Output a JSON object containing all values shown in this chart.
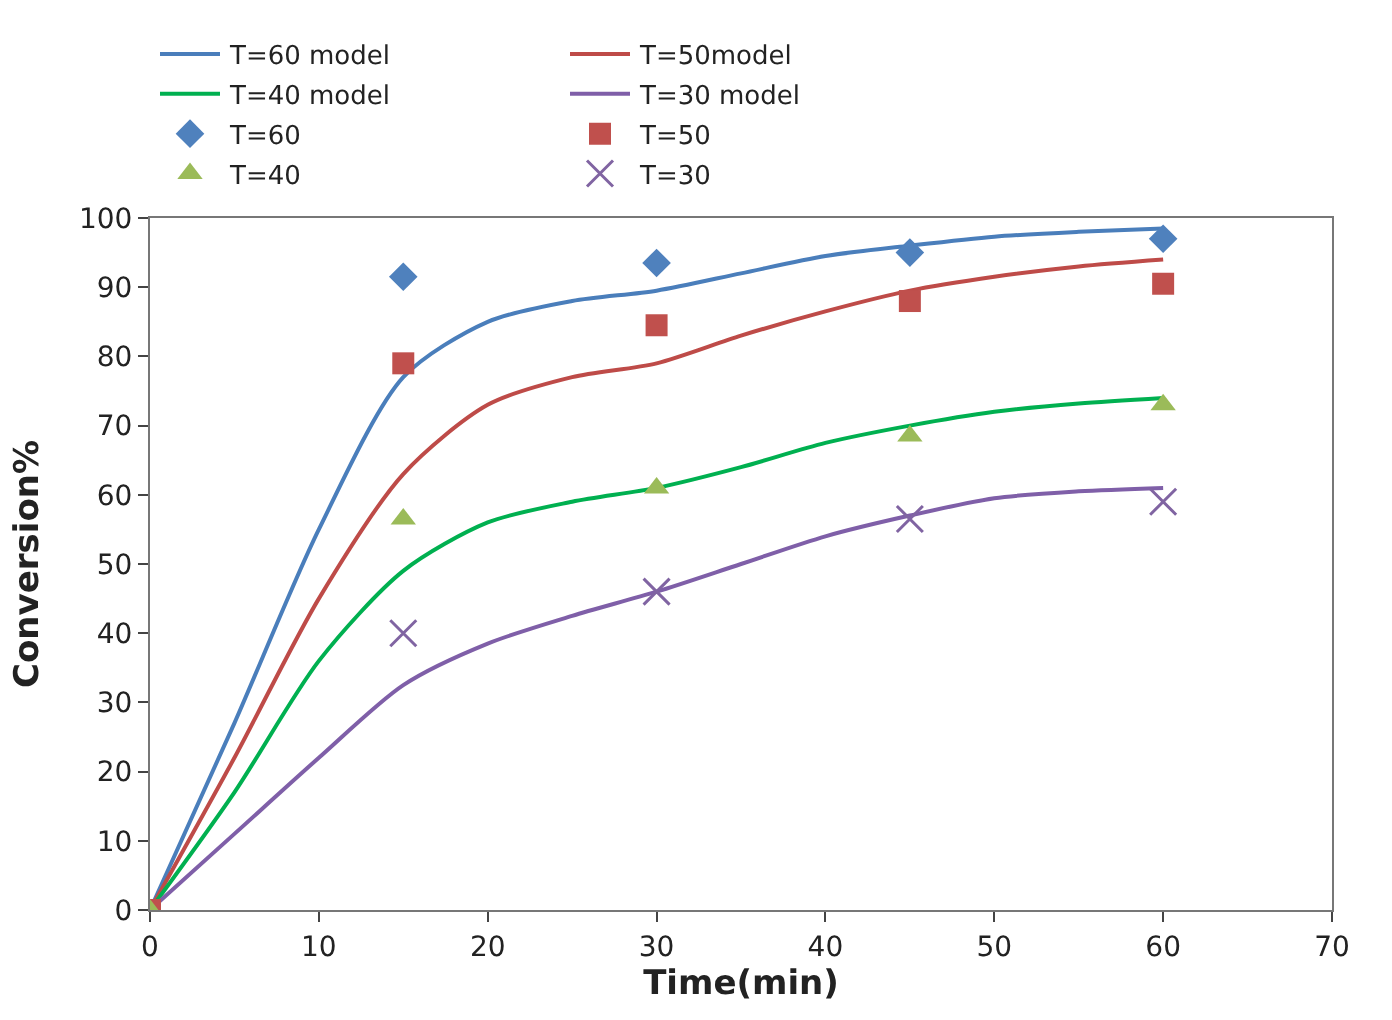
{
  "chart_data": {
    "type": "line",
    "xlabel": "Time(min)",
    "ylabel": "Conversion%",
    "xlim": [
      0,
      70
    ],
    "xticks": [
      0,
      10,
      20,
      30,
      40,
      50,
      60,
      70
    ],
    "ylim": [
      0,
      100
    ],
    "yticks": [
      0,
      10,
      20,
      30,
      40,
      50,
      60,
      70,
      80,
      90,
      100
    ],
    "grid": false,
    "legend": "top",
    "line_style": "solid",
    "series": [
      {
        "name": "T=60 model",
        "marker": "none",
        "color": "#4a7ebb",
        "x": [
          0,
          5,
          10,
          15,
          20,
          25,
          30,
          35,
          40,
          45,
          50,
          55,
          60
        ],
        "values": [
          0,
          27,
          55,
          77,
          85,
          88,
          89.5,
          92,
          94.5,
          96,
          97.3,
          98,
          98.5
        ]
      },
      {
        "name": "T=50model",
        "marker": "none",
        "color": "#be4b48",
        "x": [
          0,
          5,
          10,
          15,
          20,
          25,
          30,
          35,
          40,
          45,
          50,
          55,
          60
        ],
        "values": [
          0,
          22,
          45,
          63,
          73,
          77,
          79,
          83,
          86.5,
          89.5,
          91.5,
          93,
          94
        ]
      },
      {
        "name": "T=40 model",
        "marker": "none",
        "color": "#00b050",
        "x": [
          0,
          5,
          10,
          15,
          20,
          25,
          30,
          35,
          40,
          45,
          50,
          55,
          60
        ],
        "values": [
          0,
          17,
          36,
          49,
          56,
          59,
          61,
          64,
          67.5,
          70,
          72,
          73.2,
          74
        ]
      },
      {
        "name": "T=30 model",
        "marker": "none",
        "color": "#7f5fa8",
        "x": [
          0,
          5,
          10,
          15,
          20,
          25,
          30,
          35,
          40,
          45,
          50,
          55,
          60
        ],
        "values": [
          0,
          11,
          22,
          32.5,
          38.5,
          42.5,
          46,
          50,
          54,
          57,
          59.5,
          60.5,
          61
        ]
      },
      {
        "name": "T=60",
        "type": "scatter",
        "marker": "diamond",
        "color": "#4f81bd",
        "x": [
          15,
          30,
          45,
          60
        ],
        "values": [
          91.5,
          93.5,
          95,
          97
        ]
      },
      {
        "name": "T=50",
        "type": "scatter",
        "marker": "square",
        "color": "#c0504d",
        "x": [
          0,
          15,
          30,
          45,
          60
        ],
        "values": [
          0,
          79,
          84.5,
          88,
          90.5
        ]
      },
      {
        "name": "T=40",
        "type": "scatter",
        "marker": "triangle",
        "color": "#9bbb59",
        "x": [
          0,
          15,
          30,
          45,
          60
        ],
        "values": [
          0,
          56.5,
          61,
          68.5,
          73
        ]
      },
      {
        "name": "T=30",
        "type": "scatter",
        "marker": "cross",
        "color": "#8064a2",
        "x": [
          15,
          30,
          45,
          60
        ],
        "values": [
          40,
          46,
          56.5,
          59
        ]
      }
    ]
  }
}
